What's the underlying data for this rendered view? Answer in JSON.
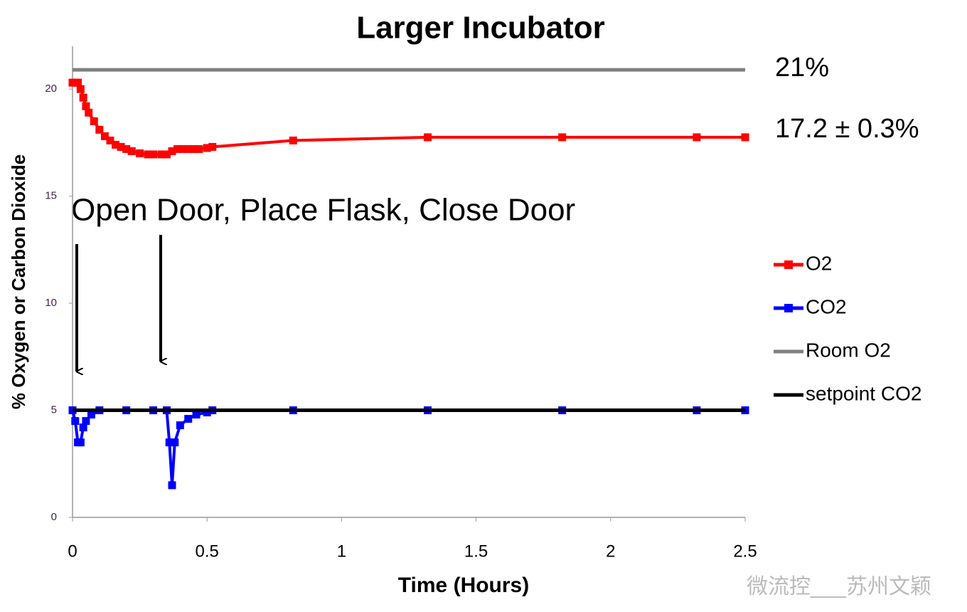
{
  "chart_data": {
    "type": "line",
    "title": "Larger Incubator",
    "x_label": "Time (Hours)",
    "y_label": "% Oxygen or Carbon Dioxide",
    "annotations": [
      "21%",
      "17.2 ± 0.3%",
      "Open Door, Place Flask, Close Door"
    ],
    "watermark": "微流控___苏州文颖",
    "xlim": [
      0,
      2.5
    ],
    "xticks": [
      0,
      0.5,
      1,
      1.5,
      2,
      2.5
    ],
    "ylim": [
      0,
      22
    ],
    "yticks": [
      0,
      5,
      10,
      15,
      20
    ],
    "grid": false,
    "legend": "right",
    "series": [
      {
        "name": "O2",
        "color": "#ff0000",
        "marker": "square",
        "x": [
          0,
          0.01,
          0.02,
          0.03,
          0.04,
          0.05,
          0.06,
          0.08,
          0.1,
          0.12,
          0.14,
          0.16,
          0.18,
          0.2,
          0.22,
          0.25,
          0.28,
          0.3,
          0.33,
          0.35,
          0.37,
          0.39,
          0.41,
          0.43,
          0.45,
          0.47,
          0.5,
          0.52,
          0.82,
          1.32,
          1.82,
          2.32,
          2.5
        ],
        "values": [
          20.3,
          20.3,
          20.3,
          20.0,
          19.6,
          19.2,
          18.9,
          18.5,
          18.1,
          17.8,
          17.6,
          17.4,
          17.3,
          17.2,
          17.1,
          17.0,
          16.95,
          16.95,
          16.95,
          16.95,
          17.1,
          17.2,
          17.2,
          17.2,
          17.2,
          17.2,
          17.25,
          17.3,
          17.6,
          17.75,
          17.75,
          17.75,
          17.75
        ]
      },
      {
        "name": "CO2",
        "color": "#0000ff",
        "marker": "square",
        "x": [
          0,
          0.01,
          0.02,
          0.03,
          0.04,
          0.05,
          0.07,
          0.1,
          0.2,
          0.3,
          0.35,
          0.36,
          0.37,
          0.38,
          0.4,
          0.43,
          0.46,
          0.5,
          0.52,
          0.82,
          1.32,
          1.82,
          2.32,
          2.5
        ],
        "values": [
          5.0,
          4.5,
          3.5,
          3.5,
          4.2,
          4.5,
          4.8,
          5.0,
          5.0,
          5.0,
          5.0,
          3.5,
          1.5,
          3.5,
          4.3,
          4.6,
          4.8,
          4.9,
          5.0,
          5.0,
          5.0,
          5.0,
          5.0,
          5.0
        ]
      },
      {
        "name": "Room O2",
        "color": "#808080",
        "x": [
          0,
          2.5
        ],
        "values": [
          20.9,
          20.9
        ]
      },
      {
        "name": "setpoint CO2",
        "color": "#000000",
        "x": [
          0,
          2.5
        ],
        "values": [
          5,
          5
        ]
      }
    ]
  }
}
